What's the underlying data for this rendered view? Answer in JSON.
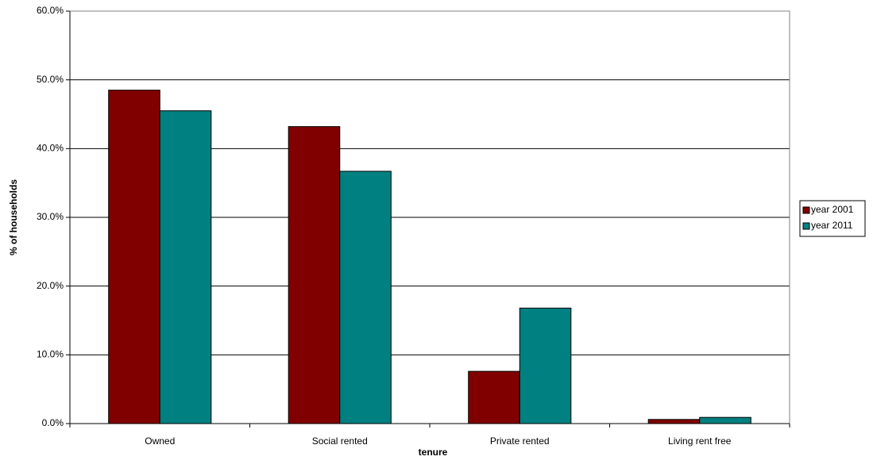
{
  "chart_data": {
    "type": "bar",
    "x_label": "tenure",
    "y_label": "% of households",
    "categories": [
      "Owned",
      "Social rented",
      "Private rented",
      "Living rent free"
    ],
    "series": [
      {
        "name": "year 2001",
        "color": "#800000",
        "values": [
          48.5,
          43.2,
          7.6,
          0.6
        ]
      },
      {
        "name": "year 2011",
        "color": "#008080",
        "values": [
          45.5,
          36.7,
          16.8,
          0.9
        ]
      }
    ],
    "ylim": [
      0,
      60
    ],
    "yticks": [
      {
        "value": 0,
        "label": "0.0%"
      },
      {
        "value": 10,
        "label": "10.0%"
      },
      {
        "value": 20,
        "label": "20.0%"
      },
      {
        "value": 30,
        "label": "30.0%"
      },
      {
        "value": 40,
        "label": "40.0%"
      },
      {
        "value": 50,
        "label": "50.0%"
      },
      {
        "value": 60,
        "label": "60.0%"
      }
    ],
    "grid": true,
    "legend": "right"
  }
}
